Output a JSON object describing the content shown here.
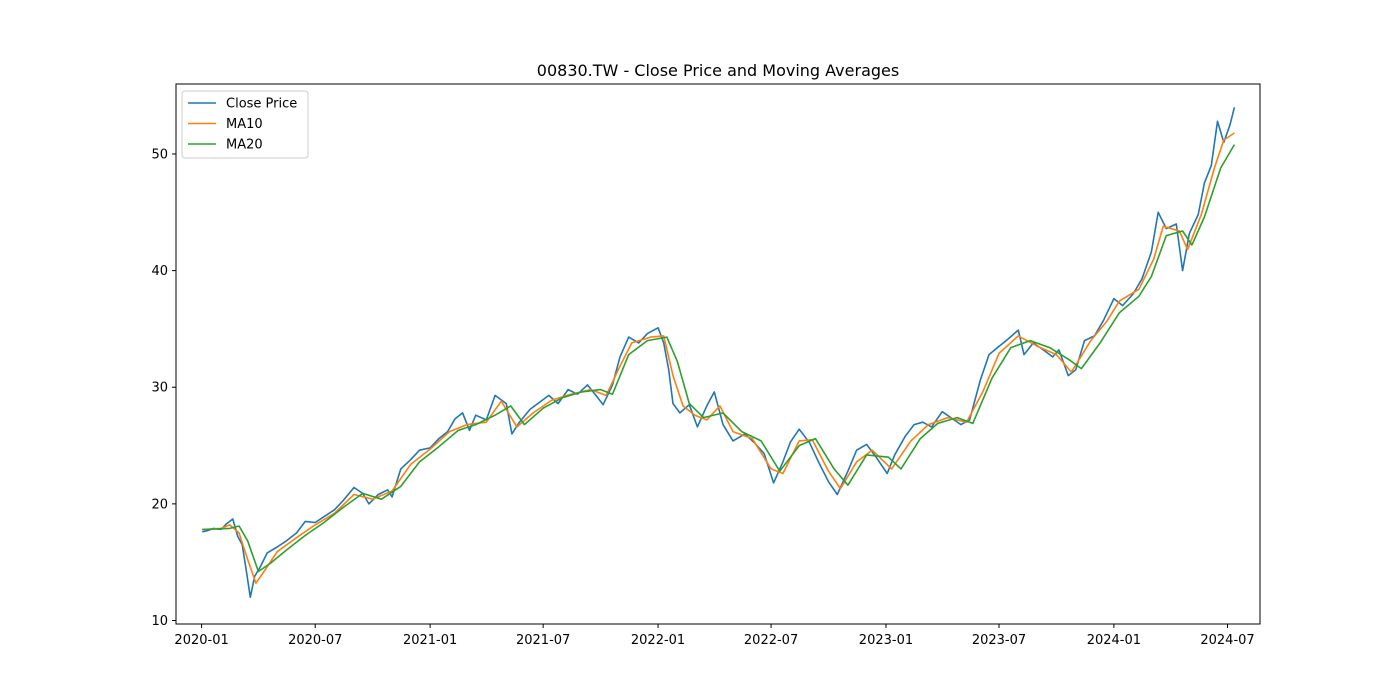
{
  "chart_data": {
    "type": "line",
    "title": "00830.TW - Close Price and Moving Averages",
    "xlabel": "",
    "ylabel": "",
    "xlim": [
      "2019-11-21",
      "2024-08-22"
    ],
    "ylim": [
      9.7,
      56.0
    ],
    "x_ticks": [
      "2020-01",
      "2020-07",
      "2021-01",
      "2021-07",
      "2022-01",
      "2022-07",
      "2023-01",
      "2023-07",
      "2024-01",
      "2024-07"
    ],
    "y_ticks": [
      10,
      20,
      30,
      40,
      50
    ],
    "grid": false,
    "legend_position": "upper-left",
    "series": [
      {
        "name": "Close Price",
        "color": "#1f77b4",
        "points": [
          [
            "2020-01-02",
            17.6
          ],
          [
            "2020-01-10",
            17.7
          ],
          [
            "2020-01-20",
            17.9
          ],
          [
            "2020-02-01",
            17.8
          ],
          [
            "2020-02-10",
            18.3
          ],
          [
            "2020-02-20",
            18.7
          ],
          [
            "2020-02-28",
            17.2
          ],
          [
            "2020-03-06",
            16.5
          ],
          [
            "2020-03-12",
            14.5
          ],
          [
            "2020-03-19",
            12.0
          ],
          [
            "2020-03-26",
            13.8
          ],
          [
            "2020-04-03",
            14.5
          ],
          [
            "2020-04-15",
            15.8
          ],
          [
            "2020-05-01",
            16.3
          ],
          [
            "2020-05-15",
            16.8
          ],
          [
            "2020-06-01",
            17.5
          ],
          [
            "2020-06-15",
            18.5
          ],
          [
            "2020-07-01",
            18.4
          ],
          [
            "2020-07-15",
            18.9
          ],
          [
            "2020-08-01",
            19.5
          ],
          [
            "2020-08-15",
            20.3
          ],
          [
            "2020-09-01",
            21.4
          ],
          [
            "2020-09-15",
            20.9
          ],
          [
            "2020-09-25",
            20.0
          ],
          [
            "2020-10-10",
            20.8
          ],
          [
            "2020-10-25",
            21.2
          ],
          [
            "2020-11-01",
            20.6
          ],
          [
            "2020-11-15",
            23.0
          ],
          [
            "2020-12-01",
            23.8
          ],
          [
            "2020-12-15",
            24.6
          ],
          [
            "2021-01-01",
            24.8
          ],
          [
            "2021-01-15",
            25.6
          ],
          [
            "2021-01-29",
            26.2
          ],
          [
            "2021-02-10",
            27.3
          ],
          [
            "2021-02-22",
            27.8
          ],
          [
            "2021-03-05",
            26.3
          ],
          [
            "2021-03-15",
            27.6
          ],
          [
            "2021-04-01",
            27.2
          ],
          [
            "2021-04-15",
            29.3
          ],
          [
            "2021-05-03",
            28.6
          ],
          [
            "2021-05-12",
            26.0
          ],
          [
            "2021-05-24",
            27.0
          ],
          [
            "2021-06-10",
            28.1
          ],
          [
            "2021-06-25",
            28.7
          ],
          [
            "2021-07-10",
            29.3
          ],
          [
            "2021-07-25",
            28.6
          ],
          [
            "2021-08-10",
            29.8
          ],
          [
            "2021-08-25",
            29.4
          ],
          [
            "2021-09-10",
            30.2
          ],
          [
            "2021-09-25",
            29.2
          ],
          [
            "2021-10-05",
            28.5
          ],
          [
            "2021-10-20",
            30.2
          ],
          [
            "2021-11-01",
            32.6
          ],
          [
            "2021-11-15",
            34.3
          ],
          [
            "2021-12-01",
            33.8
          ],
          [
            "2021-12-15",
            34.6
          ],
          [
            "2022-01-01",
            35.1
          ],
          [
            "2022-01-10",
            33.8
          ],
          [
            "2022-01-18",
            31.5
          ],
          [
            "2022-01-25",
            28.6
          ],
          [
            "2022-02-05",
            27.8
          ],
          [
            "2022-02-20",
            28.5
          ],
          [
            "2022-03-05",
            26.6
          ],
          [
            "2022-03-20",
            28.4
          ],
          [
            "2022-04-01",
            29.6
          ],
          [
            "2022-04-15",
            26.8
          ],
          [
            "2022-05-01",
            25.4
          ],
          [
            "2022-05-20",
            26.0
          ],
          [
            "2022-06-05",
            25.2
          ],
          [
            "2022-06-20",
            24.3
          ],
          [
            "2022-07-05",
            21.8
          ],
          [
            "2022-07-20",
            23.6
          ],
          [
            "2022-08-01",
            25.3
          ],
          [
            "2022-08-15",
            26.4
          ],
          [
            "2022-09-01",
            25.2
          ],
          [
            "2022-09-15",
            23.6
          ],
          [
            "2022-10-01",
            21.9
          ],
          [
            "2022-10-15",
            20.8
          ],
          [
            "2022-11-01",
            22.8
          ],
          [
            "2022-11-15",
            24.6
          ],
          [
            "2022-12-01",
            25.1
          ],
          [
            "2022-12-15",
            24.1
          ],
          [
            "2023-01-03",
            22.6
          ],
          [
            "2023-01-15",
            24.2
          ],
          [
            "2023-02-01",
            25.8
          ],
          [
            "2023-02-15",
            26.8
          ],
          [
            "2023-03-01",
            27.0
          ],
          [
            "2023-03-15",
            26.6
          ],
          [
            "2023-04-01",
            27.9
          ],
          [
            "2023-04-15",
            27.4
          ],
          [
            "2023-05-01",
            26.8
          ],
          [
            "2023-05-15",
            27.2
          ],
          [
            "2023-06-01",
            30.6
          ],
          [
            "2023-06-15",
            32.8
          ],
          [
            "2023-07-01",
            33.5
          ],
          [
            "2023-07-15",
            34.1
          ],
          [
            "2023-08-01",
            34.9
          ],
          [
            "2023-08-10",
            32.8
          ],
          [
            "2023-08-25",
            33.8
          ],
          [
            "2023-09-10",
            33.2
          ],
          [
            "2023-09-25",
            32.6
          ],
          [
            "2023-10-05",
            33.2
          ],
          [
            "2023-10-20",
            31.0
          ],
          [
            "2023-11-01",
            31.5
          ],
          [
            "2023-11-15",
            34.0
          ],
          [
            "2023-12-01",
            34.4
          ],
          [
            "2023-12-15",
            35.7
          ],
          [
            "2024-01-01",
            37.6
          ],
          [
            "2024-01-15",
            37.0
          ],
          [
            "2024-02-01",
            38.0
          ],
          [
            "2024-02-15",
            39.3
          ],
          [
            "2024-03-01",
            41.6
          ],
          [
            "2024-03-12",
            45.0
          ],
          [
            "2024-03-25",
            43.6
          ],
          [
            "2024-04-10",
            44.0
          ],
          [
            "2024-04-20",
            40.0
          ],
          [
            "2024-05-01",
            43.2
          ],
          [
            "2024-05-15",
            44.8
          ],
          [
            "2024-05-25",
            47.5
          ],
          [
            "2024-06-05",
            49.0
          ],
          [
            "2024-06-15",
            52.8
          ],
          [
            "2024-06-25",
            51.0
          ],
          [
            "2024-07-05",
            52.5
          ],
          [
            "2024-07-12",
            54.0
          ]
        ]
      },
      {
        "name": "MA10",
        "color": "#ff7f0e",
        "points": [
          [
            "2020-01-02",
            17.8
          ],
          [
            "2020-02-01",
            17.9
          ],
          [
            "2020-02-15",
            18.2
          ],
          [
            "2020-03-01",
            17.5
          ],
          [
            "2020-03-15",
            15.2
          ],
          [
            "2020-03-28",
            13.2
          ],
          [
            "2020-04-10",
            14.2
          ],
          [
            "2020-05-01",
            15.9
          ],
          [
            "2020-06-01",
            17.1
          ],
          [
            "2020-07-01",
            18.2
          ],
          [
            "2020-08-01",
            19.2
          ],
          [
            "2020-09-01",
            20.8
          ],
          [
            "2020-10-01",
            20.4
          ],
          [
            "2020-11-01",
            21.1
          ],
          [
            "2020-12-01",
            23.4
          ],
          [
            "2021-01-01",
            24.7
          ],
          [
            "2021-02-01",
            26.2
          ],
          [
            "2021-03-01",
            26.8
          ],
          [
            "2021-04-01",
            27.0
          ],
          [
            "2021-04-25",
            28.8
          ],
          [
            "2021-05-20",
            26.6
          ],
          [
            "2021-06-15",
            27.8
          ],
          [
            "2021-07-15",
            28.9
          ],
          [
            "2021-08-15",
            29.4
          ],
          [
            "2021-09-15",
            29.8
          ],
          [
            "2021-10-10",
            29.3
          ],
          [
            "2021-11-01",
            31.8
          ],
          [
            "2021-11-20",
            33.8
          ],
          [
            "2021-12-20",
            34.3
          ],
          [
            "2022-01-10",
            34.4
          ],
          [
            "2022-01-25",
            31.0
          ],
          [
            "2022-02-10",
            28.4
          ],
          [
            "2022-03-01",
            27.6
          ],
          [
            "2022-03-20",
            27.2
          ],
          [
            "2022-04-10",
            28.4
          ],
          [
            "2022-05-01",
            26.2
          ],
          [
            "2022-06-01",
            25.6
          ],
          [
            "2022-07-01",
            23.0
          ],
          [
            "2022-07-20",
            22.6
          ],
          [
            "2022-08-15",
            25.4
          ],
          [
            "2022-09-05",
            25.5
          ],
          [
            "2022-10-01",
            22.8
          ],
          [
            "2022-10-20",
            21.3
          ],
          [
            "2022-11-15",
            23.6
          ],
          [
            "2022-12-10",
            24.6
          ],
          [
            "2023-01-10",
            23.0
          ],
          [
            "2023-02-10",
            25.4
          ],
          [
            "2023-03-10",
            26.8
          ],
          [
            "2023-04-10",
            27.4
          ],
          [
            "2023-05-10",
            27.0
          ],
          [
            "2023-06-05",
            29.6
          ],
          [
            "2023-07-01",
            32.9
          ],
          [
            "2023-08-01",
            34.4
          ],
          [
            "2023-09-01",
            33.5
          ],
          [
            "2023-10-01",
            32.8
          ],
          [
            "2023-10-25",
            31.3
          ],
          [
            "2023-11-25",
            34.0
          ],
          [
            "2023-12-20",
            35.6
          ],
          [
            "2024-01-10",
            37.4
          ],
          [
            "2024-02-10",
            38.4
          ],
          [
            "2024-03-05",
            41.0
          ],
          [
            "2024-03-20",
            43.8
          ],
          [
            "2024-04-15",
            43.4
          ],
          [
            "2024-04-28",
            41.8
          ],
          [
            "2024-05-20",
            44.8
          ],
          [
            "2024-06-10",
            48.8
          ],
          [
            "2024-06-25",
            51.2
          ],
          [
            "2024-07-12",
            51.8
          ]
        ]
      },
      {
        "name": "MA20",
        "color": "#2ca02c",
        "points": [
          [
            "2020-01-02",
            17.8
          ],
          [
            "2020-02-15",
            17.9
          ],
          [
            "2020-03-01",
            18.1
          ],
          [
            "2020-03-15",
            16.8
          ],
          [
            "2020-04-01",
            14.2
          ],
          [
            "2020-04-20",
            14.9
          ],
          [
            "2020-05-15",
            16.0
          ],
          [
            "2020-06-15",
            17.3
          ],
          [
            "2020-07-15",
            18.4
          ],
          [
            "2020-08-15",
            19.7
          ],
          [
            "2020-09-15",
            20.9
          ],
          [
            "2020-10-15",
            20.4
          ],
          [
            "2020-11-15",
            21.5
          ],
          [
            "2020-12-15",
            23.6
          ],
          [
            "2021-01-15",
            24.9
          ],
          [
            "2021-02-15",
            26.3
          ],
          [
            "2021-03-15",
            26.8
          ],
          [
            "2021-04-15",
            27.6
          ],
          [
            "2021-05-10",
            28.4
          ],
          [
            "2021-06-01",
            26.8
          ],
          [
            "2021-07-01",
            28.2
          ],
          [
            "2021-08-01",
            29.1
          ],
          [
            "2021-09-01",
            29.6
          ],
          [
            "2021-10-01",
            29.8
          ],
          [
            "2021-10-20",
            29.4
          ],
          [
            "2021-11-15",
            32.8
          ],
          [
            "2021-12-15",
            34.0
          ],
          [
            "2022-01-15",
            34.3
          ],
          [
            "2022-02-01",
            32.2
          ],
          [
            "2022-02-20",
            28.6
          ],
          [
            "2022-03-15",
            27.4
          ],
          [
            "2022-04-15",
            27.8
          ],
          [
            "2022-05-15",
            26.2
          ],
          [
            "2022-06-15",
            25.4
          ],
          [
            "2022-07-15",
            22.8
          ],
          [
            "2022-08-15",
            25.0
          ],
          [
            "2022-09-10",
            25.6
          ],
          [
            "2022-10-10",
            23.0
          ],
          [
            "2022-11-01",
            21.6
          ],
          [
            "2022-12-01",
            24.2
          ],
          [
            "2023-01-05",
            24.0
          ],
          [
            "2023-01-25",
            23.0
          ],
          [
            "2023-02-25",
            25.6
          ],
          [
            "2023-03-25",
            26.9
          ],
          [
            "2023-04-25",
            27.4
          ],
          [
            "2023-05-20",
            26.9
          ],
          [
            "2023-06-20",
            30.8
          ],
          [
            "2023-07-20",
            33.4
          ],
          [
            "2023-08-20",
            34.0
          ],
          [
            "2023-09-20",
            33.4
          ],
          [
            "2023-10-20",
            32.4
          ],
          [
            "2023-11-10",
            31.6
          ],
          [
            "2023-12-10",
            33.8
          ],
          [
            "2024-01-10",
            36.4
          ],
          [
            "2024-02-10",
            37.8
          ],
          [
            "2024-03-01",
            39.5
          ],
          [
            "2024-03-25",
            43.0
          ],
          [
            "2024-04-20",
            43.4
          ],
          [
            "2024-05-05",
            42.2
          ],
          [
            "2024-05-25",
            44.6
          ],
          [
            "2024-06-20",
            48.8
          ],
          [
            "2024-07-12",
            50.8
          ]
        ]
      }
    ]
  }
}
